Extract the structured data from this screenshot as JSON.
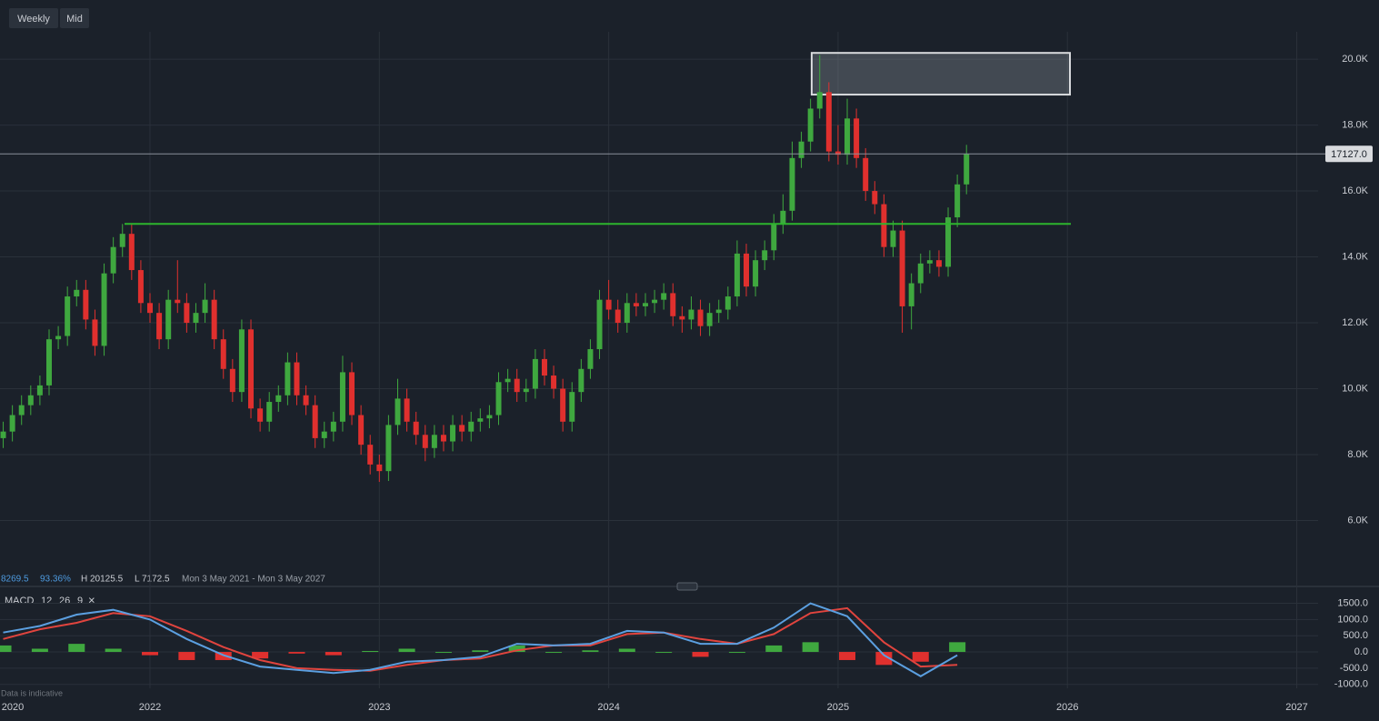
{
  "toolbar": {
    "interval": "Weekly",
    "price_mode": "Mid"
  },
  "chart_data": [
    {
      "type": "candlestick",
      "up_color": "#3fa83f",
      "down_color": "#e0302e",
      "x": [
        2021.36,
        2021.4,
        2021.44,
        2021.48,
        2021.52,
        2021.56,
        2021.6,
        2021.64,
        2021.68,
        2021.72,
        2021.76,
        2021.8,
        2021.84,
        2021.88,
        2021.92,
        2021.96,
        2022.0,
        2022.04,
        2022.08,
        2022.12,
        2022.16,
        2022.2,
        2022.24,
        2022.28,
        2022.32,
        2022.36,
        2022.4,
        2022.44,
        2022.48,
        2022.52,
        2022.56,
        2022.6,
        2022.64,
        2022.68,
        2022.72,
        2022.76,
        2022.8,
        2022.84,
        2022.88,
        2022.92,
        2022.96,
        2023.0,
        2023.04,
        2023.08,
        2023.12,
        2023.16,
        2023.2,
        2023.24,
        2023.28,
        2023.32,
        2023.36,
        2023.4,
        2023.44,
        2023.48,
        2023.52,
        2023.56,
        2023.6,
        2023.64,
        2023.68,
        2023.72,
        2023.76,
        2023.8,
        2023.84,
        2023.88,
        2023.92,
        2023.96,
        2024.0,
        2024.04,
        2024.08,
        2024.12,
        2024.16,
        2024.2,
        2024.24,
        2024.28,
        2024.32,
        2024.36,
        2024.4,
        2024.44,
        2024.48,
        2024.52,
        2024.56,
        2024.6,
        2024.64,
        2024.68,
        2024.72,
        2024.76,
        2024.8,
        2024.84,
        2024.88,
        2024.92,
        2024.96,
        2025.0,
        2025.04,
        2025.08,
        2025.12,
        2025.16,
        2025.2,
        2025.24,
        2025.28,
        2025.32,
        2025.36,
        2025.4,
        2025.44,
        2025.48,
        2025.52,
        2025.56
      ],
      "ohlc": [
        [
          8500,
          9000,
          8200,
          8700
        ],
        [
          8700,
          9500,
          8400,
          9200
        ],
        [
          9200,
          9800,
          8900,
          9500
        ],
        [
          9500,
          10100,
          9200,
          9800
        ],
        [
          9800,
          10400,
          9500,
          10100
        ],
        [
          10100,
          11800,
          9800,
          11500
        ],
        [
          11500,
          11900,
          11200,
          11600
        ],
        [
          11600,
          13100,
          11300,
          12800
        ],
        [
          12800,
          13300,
          12500,
          13000
        ],
        [
          13000,
          13300,
          11800,
          12100
        ],
        [
          12100,
          12400,
          11000,
          11300
        ],
        [
          11300,
          13800,
          11000,
          13500
        ],
        [
          13500,
          14600,
          13200,
          14300
        ],
        [
          14300,
          15000,
          14000,
          14700
        ],
        [
          14700,
          15000,
          13300,
          13600
        ],
        [
          13600,
          13900,
          12300,
          12600
        ],
        [
          12600,
          12900,
          12000,
          12300
        ],
        [
          12300,
          12600,
          11200,
          11500
        ],
        [
          11500,
          13000,
          11200,
          12700
        ],
        [
          12700,
          13900,
          12300,
          12600
        ],
        [
          12600,
          12900,
          11700,
          12000
        ],
        [
          12000,
          12600,
          11700,
          12300
        ],
        [
          12300,
          13200,
          12000,
          12700
        ],
        [
          12700,
          13000,
          11200,
          11500
        ],
        [
          11500,
          11800,
          10300,
          10600
        ],
        [
          10600,
          10900,
          9600,
          9900
        ],
        [
          9900,
          12100,
          9600,
          11800
        ],
        [
          11800,
          12100,
          9100,
          9400
        ],
        [
          9400,
          9700,
          8700,
          9000
        ],
        [
          9000,
          9900,
          8700,
          9600
        ],
        [
          9600,
          10100,
          9300,
          9800
        ],
        [
          9800,
          11100,
          9500,
          10800
        ],
        [
          10800,
          11100,
          9500,
          9800
        ],
        [
          9800,
          10100,
          9200,
          9500
        ],
        [
          9500,
          9800,
          8200,
          8500
        ],
        [
          8500,
          9000,
          8200,
          8700
        ],
        [
          8700,
          9300,
          8400,
          9000
        ],
        [
          9000,
          11000,
          8700,
          10500
        ],
        [
          10500,
          10800,
          8900,
          9200
        ],
        [
          9200,
          9500,
          8000,
          8300
        ],
        [
          8300,
          8600,
          7400,
          7700
        ],
        [
          7700,
          8000,
          7172,
          7500
        ],
        [
          7500,
          9200,
          7200,
          8900
        ],
        [
          8900,
          10300,
          8600,
          9700
        ],
        [
          9700,
          10000,
          8700,
          9000
        ],
        [
          9000,
          9300,
          8300,
          8600
        ],
        [
          8600,
          8900,
          7800,
          8200
        ],
        [
          8200,
          8900,
          7900,
          8600
        ],
        [
          8600,
          8900,
          8100,
          8400
        ],
        [
          8400,
          9200,
          8100,
          8900
        ],
        [
          8900,
          9200,
          8400,
          8700
        ],
        [
          8700,
          9300,
          8400,
          9000
        ],
        [
          9000,
          9400,
          8700,
          9100
        ],
        [
          9100,
          9500,
          8800,
          9200
        ],
        [
          9200,
          10500,
          8900,
          10200
        ],
        [
          10200,
          10600,
          9900,
          10300
        ],
        [
          10300,
          10600,
          9600,
          9900
        ],
        [
          9900,
          10300,
          9600,
          10000
        ],
        [
          10000,
          11200,
          9700,
          10900
        ],
        [
          10900,
          11200,
          10100,
          10400
        ],
        [
          10400,
          10700,
          9700,
          10000
        ],
        [
          10000,
          10300,
          8700,
          9000
        ],
        [
          9000,
          10200,
          8700,
          9900
        ],
        [
          9900,
          10900,
          9600,
          10600
        ],
        [
          10600,
          11500,
          10300,
          11200
        ],
        [
          11200,
          13000,
          10900,
          12700
        ],
        [
          12700,
          13300,
          12100,
          12400
        ],
        [
          12400,
          12700,
          11700,
          12000
        ],
        [
          12000,
          12900,
          11700,
          12600
        ],
        [
          12600,
          12900,
          12200,
          12500
        ],
        [
          12500,
          12900,
          12200,
          12600
        ],
        [
          12600,
          13000,
          12300,
          12700
        ],
        [
          12700,
          13200,
          12400,
          12900
        ],
        [
          12900,
          13200,
          11900,
          12200
        ],
        [
          12200,
          12500,
          11700,
          12100
        ],
        [
          12100,
          12800,
          11800,
          12400
        ],
        [
          12400,
          12700,
          11600,
          11900
        ],
        [
          11900,
          12600,
          11600,
          12300
        ],
        [
          12300,
          12700,
          12000,
          12400
        ],
        [
          12400,
          13100,
          12100,
          12800
        ],
        [
          12800,
          14500,
          12500,
          14100
        ],
        [
          14100,
          14400,
          12800,
          13100
        ],
        [
          13100,
          14200,
          12800,
          13900
        ],
        [
          13900,
          14500,
          13600,
          14200
        ],
        [
          14200,
          15300,
          13900,
          15000
        ],
        [
          15000,
          15900,
          14700,
          15400
        ],
        [
          15400,
          17500,
          15100,
          17000
        ],
        [
          17000,
          17800,
          16700,
          17500
        ],
        [
          17500,
          18800,
          17200,
          18500
        ],
        [
          18500,
          20125,
          18200,
          19000
        ],
        [
          19000,
          19300,
          16900,
          17200
        ],
        [
          17200,
          18000,
          16800,
          17100
        ],
        [
          17100,
          18800,
          16800,
          18200
        ],
        [
          18200,
          18500,
          16700,
          17000
        ],
        [
          17000,
          17300,
          15700,
          16000
        ],
        [
          16000,
          16300,
          15300,
          15600
        ],
        [
          15600,
          15900,
          14000,
          14300
        ],
        [
          14300,
          15100,
          14000,
          14800
        ],
        [
          14800,
          15100,
          11700,
          12500
        ],
        [
          12500,
          13500,
          11800,
          13200
        ],
        [
          13200,
          14100,
          12900,
          13800
        ],
        [
          13800,
          14200,
          13500,
          13900
        ],
        [
          13900,
          14200,
          13400,
          13700
        ],
        [
          13700,
          15500,
          13400,
          15200
        ],
        [
          15200,
          16500,
          14900,
          16200
        ],
        [
          16200,
          17400,
          15900,
          17127
        ]
      ],
      "xlim": [
        2021.346,
        2027.093
      ],
      "xticks": [
        2022,
        2023,
        2024,
        2025,
        2026,
        2027
      ],
      "xaxis_start_label": "2020",
      "ylim": [
        4000,
        20830
      ],
      "yticks": [
        {
          "value": 6000,
          "label": "6.0K"
        },
        {
          "value": 8000,
          "label": "8.0K"
        },
        {
          "value": 10000,
          "label": "10.0K"
        },
        {
          "value": 12000,
          "label": "12.0K"
        },
        {
          "value": 14000,
          "label": "14.0K"
        },
        {
          "value": 16000,
          "label": "16.0K"
        },
        {
          "value": 18000,
          "label": "18.0K"
        },
        {
          "value": 20000,
          "label": "20.0K"
        }
      ],
      "grid": true,
      "zone": {
        "x": [
          2024.885,
          2026.011
        ],
        "y": [
          18925,
          20190
        ]
      },
      "level": {
        "x": [
          2021.889,
          2026.015
        ],
        "value": 15000,
        "color": "#2db52d"
      },
      "last_price": {
        "value": 17127,
        "label": "17127.0"
      },
      "stats": {
        "change": "8269.5",
        "change_pct": "93.36%",
        "high": "H 20125.5",
        "low": "L 7172.5",
        "range": "Mon 3 May 2021 - Mon 3 May 2027"
      }
    },
    {
      "type": "macd",
      "title": "MACD",
      "params": [
        12,
        26,
        9
      ],
      "close_icon": "×",
      "x": [
        2021.36,
        2021.52,
        2021.68,
        2021.84,
        2022.0,
        2022.16,
        2022.32,
        2022.48,
        2022.64,
        2022.8,
        2022.96,
        2023.12,
        2023.28,
        2023.44,
        2023.6,
        2023.76,
        2023.92,
        2024.08,
        2024.24,
        2024.4,
        2024.56,
        2024.72,
        2024.88,
        2025.04,
        2025.2,
        2025.36,
        2025.52
      ],
      "macd": {
        "color": "#5b9fe0",
        "values": [
          600,
          800,
          1150,
          1300,
          1000,
          400,
          -100,
          -450,
          -550,
          -650,
          -550,
          -300,
          -250,
          -150,
          250,
          200,
          250,
          650,
          600,
          250,
          250,
          750,
          1500,
          1100,
          -100,
          -750,
          -100
        ]
      },
      "signal": {
        "color": "#e0443e",
        "values": [
          400,
          700,
          900,
          1200,
          1100,
          650,
          150,
          -250,
          -500,
          -550,
          -580,
          -400,
          -250,
          -200,
          50,
          200,
          200,
          550,
          600,
          400,
          250,
          550,
          1200,
          1350,
          300,
          -450,
          -400
        ]
      },
      "histogram": {
        "up_color": "#3fa83f",
        "down_color": "#e0302e",
        "values": [
          200,
          100,
          250,
          100,
          -100,
          -250,
          -250,
          -200,
          -50,
          -100,
          30,
          100,
          0,
          50,
          200,
          0,
          50,
          100,
          0,
          -150,
          0,
          200,
          300,
          -250,
          -400,
          -300,
          300
        ]
      },
      "ylim": [
        -1120,
        1880
      ],
      "yticks": [
        {
          "value": 1500,
          "label": "1500.0"
        },
        {
          "value": 1000,
          "label": "1000.0"
        },
        {
          "value": 500,
          "label": "500.0"
        },
        {
          "value": 0,
          "label": "0.0"
        },
        {
          "value": -500,
          "label": "-500.0"
        },
        {
          "value": -1000,
          "label": "-1000.0"
        }
      ]
    }
  ],
  "footer_note": "Data is indicative"
}
